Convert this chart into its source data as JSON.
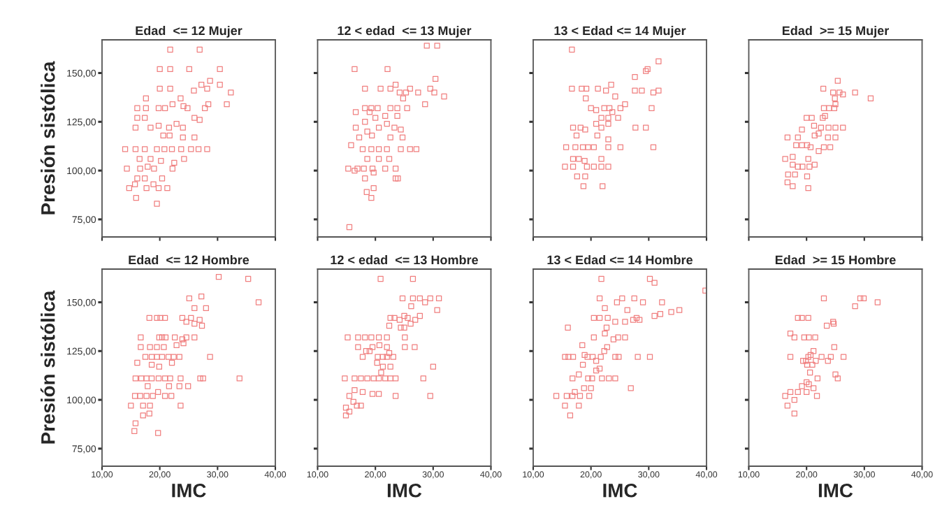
{
  "chart_data": [
    {
      "type": "scatter",
      "title": "Edad  <= 12 Mujer",
      "ylabel": "Presión sistólica",
      "xlim": [
        10,
        40
      ],
      "ylim": [
        66,
        167
      ],
      "xticks": [
        {
          "value": 10,
          "label": null
        },
        {
          "value": 20,
          "label": null
        },
        {
          "value": 30,
          "label": null
        },
        {
          "value": 40,
          "label": null
        }
      ],
      "yticks": [
        {
          "value": 75,
          "label": "75,00"
        },
        {
          "value": 100,
          "label": "100,00"
        },
        {
          "value": 125,
          "label": "125,00"
        },
        {
          "value": 150,
          "label": "150,00"
        }
      ],
      "tick_labels": "y",
      "marker": "square",
      "series": [
        {
          "color": "#f07f7f",
          "x": [
            21.8,
            26.9,
            20.0,
            21.8,
            25.1,
            30.4,
            28.7,
            27.2,
            30.4,
            20.0,
            21.8,
            25.9,
            28.2,
            32.3,
            17.6,
            23.6,
            16.1,
            17.6,
            19.8,
            20.9,
            22.2,
            24.1,
            24.8,
            27.8,
            28.4,
            31.6,
            16.1,
            17.4,
            26.0,
            26.9,
            15.8,
            18.4,
            19.8,
            21.6,
            22.9,
            24.0,
            20.6,
            21.7,
            24.0,
            26.0,
            14.0,
            15.8,
            17.4,
            19.5,
            20.8,
            22.1,
            23.7,
            25.4,
            26.7,
            28.2,
            16.5,
            18.4,
            20.2,
            22.5,
            24.2,
            14.3,
            16.6,
            17.9,
            19.0,
            22.2,
            16.1,
            17.4,
            20.4,
            15.7,
            17.7,
            18.9,
            19.8,
            21.3,
            14.7,
            15.9,
            19.5
          ],
          "values": [
            162,
            162,
            152,
            152,
            152,
            152,
            146,
            144,
            144,
            142,
            142,
            141,
            142,
            140,
            137,
            137,
            132,
            132,
            132,
            132,
            134,
            133,
            132,
            132,
            134,
            134,
            127,
            127,
            127,
            126,
            122,
            122,
            123,
            122,
            124,
            122,
            118,
            118,
            117,
            117,
            111,
            111,
            111,
            111,
            111,
            111,
            111,
            111,
            111,
            111,
            106,
            106,
            105,
            104,
            106,
            101,
            101,
            102,
            101,
            101,
            96,
            96,
            96,
            93,
            91,
            93,
            91,
            91,
            91,
            86,
            83
          ]
        }
      ]
    },
    {
      "type": "scatter",
      "title": "12 < edad  <= 13 Mujer",
      "xlim": [
        10,
        40
      ],
      "ylim": [
        66,
        167
      ],
      "xticks": [
        {
          "value": 10,
          "label": null
        },
        {
          "value": 20,
          "label": null
        },
        {
          "value": 30,
          "label": null
        },
        {
          "value": 40,
          "label": null
        }
      ],
      "yticks": [
        {
          "value": 75,
          "label": null
        },
        {
          "value": 100,
          "label": null
        },
        {
          "value": 125,
          "label": null
        },
        {
          "value": 150,
          "label": null
        }
      ],
      "tick_labels": false,
      "marker": "square",
      "series": [
        {
          "color": "#f07f7f",
          "x": [
            28.9,
            30.7,
            16.4,
            22.1,
            30.4,
            18.2,
            20.9,
            22.6,
            23.5,
            24.2,
            25.3,
            26.0,
            27.4,
            29.5,
            30.2,
            31.9,
            28.6,
            24.8,
            18.2,
            19.3,
            20.4,
            22.6,
            23.8,
            25.5,
            16.6,
            19.0,
            20.0,
            21.7,
            23.8,
            18.2,
            16.6,
            20.6,
            22.0,
            23.3,
            24.4,
            18.6,
            17.2,
            19.4,
            22.6,
            24.7,
            15.8,
            17.8,
            19.3,
            20.6,
            22.0,
            24.4,
            26.0,
            27.1,
            18.6,
            20.6,
            22.4,
            15.3,
            16.9,
            18.0,
            19.5,
            21.7,
            23.5,
            16.4,
            19.7,
            18.2,
            23.5,
            23.9,
            19.7,
            18.5,
            19.3,
            15.5
          ],
          "values": [
            164,
            164,
            152,
            152,
            147,
            142,
            142,
            142,
            144,
            140,
            140,
            142,
            140,
            142,
            140,
            138,
            134,
            137,
            132,
            132,
            132,
            132,
            132,
            132,
            130,
            130,
            127,
            128,
            128,
            125,
            122,
            122,
            124,
            122,
            121,
            120,
            117,
            118,
            117,
            117,
            113,
            111,
            111,
            111,
            111,
            111,
            111,
            111,
            106,
            106,
            106,
            101,
            101,
            101,
            101,
            101,
            101,
            100,
            99,
            96,
            96,
            96,
            91,
            89,
            86,
            71
          ]
        }
      ]
    },
    {
      "type": "scatter",
      "title": "13 < Edad <= 14 Mujer",
      "xlim": [
        10,
        40
      ],
      "ylim": [
        66,
        167
      ],
      "xticks": [
        {
          "value": 10,
          "label": null
        },
        {
          "value": 20,
          "label": null
        },
        {
          "value": 30,
          "label": null
        },
        {
          "value": 40,
          "label": null
        }
      ],
      "yticks": [
        {
          "value": 75,
          "label": null
        },
        {
          "value": 100,
          "label": null
        },
        {
          "value": 125,
          "label": null
        },
        {
          "value": 150,
          "label": null
        }
      ],
      "tick_labels": false,
      "marker": "square",
      "series": [
        {
          "color": "#f07f7f",
          "x": [
            16.7,
            31.7,
            29.8,
            29.5,
            27.6,
            16.7,
            18.4,
            19.2,
            21.2,
            22.6,
            23.5,
            24.2,
            27.6,
            28.8,
            30.8,
            31.7,
            19.1,
            20.0,
            20.9,
            22.3,
            23.2,
            23.7,
            25.1,
            25.9,
            30.5,
            21.8,
            23.0,
            24.7,
            16.9,
            18.2,
            19.0,
            20.9,
            21.8,
            23.0,
            27.7,
            29.5,
            17.5,
            21.1,
            23.0,
            15.7,
            17.3,
            18.6,
            19.5,
            20.5,
            23.0,
            25.1,
            30.8,
            16.9,
            17.9,
            21.8,
            18.9,
            15.5,
            16.9,
            19.3,
            20.5,
            21.8,
            23.0,
            17.6,
            19.0,
            18.7,
            22.0
          ],
          "values": [
            162,
            156,
            152,
            151,
            148,
            142,
            142,
            142,
            142,
            141,
            144,
            138,
            141,
            141,
            140,
            141,
            137,
            132,
            131,
            132,
            132,
            130,
            132,
            134,
            132,
            127,
            127,
            127,
            122,
            122,
            121,
            124,
            122,
            124,
            122,
            122,
            118,
            118,
            116,
            112,
            112,
            112,
            112,
            112,
            112,
            112,
            112,
            106,
            106,
            106,
            105,
            102,
            102,
            102,
            102,
            102,
            102,
            97,
            97,
            92,
            92
          ]
        }
      ]
    },
    {
      "type": "scatter",
      "title": "Edad  >= 15 Mujer",
      "xlim": [
        10,
        40
      ],
      "ylim": [
        66,
        167
      ],
      "xticks": [
        {
          "value": 10,
          "label": null
        },
        {
          "value": 20,
          "label": null
        },
        {
          "value": 30,
          "label": null
        },
        {
          "value": 40,
          "label": null
        }
      ],
      "yticks": [
        {
          "value": 75,
          "label": null
        },
        {
          "value": 100,
          "label": null
        },
        {
          "value": 125,
          "label": null
        },
        {
          "value": 150,
          "label": null
        }
      ],
      "tick_labels": false,
      "marker": "square",
      "series": [
        {
          "color": "#f07f7f",
          "x": [
            25.4,
            22.9,
            24.6,
            25.7,
            26.3,
            28.4,
            31.1,
            24.9,
            23.0,
            23.9,
            24.8,
            25.0,
            20.0,
            20.9,
            22.8,
            23.2,
            21.3,
            22.5,
            23.8,
            25.0,
            26.3,
            19.2,
            16.7,
            18.5,
            21.4,
            22.1,
            23.7,
            25.0,
            18.2,
            19.2,
            20.1,
            20.7,
            23.0,
            24.1,
            22.1,
            16.3,
            17.6,
            20.3,
            21.4,
            17.6,
            18.5,
            19.3,
            20.5,
            16.8,
            18.0,
            20.1,
            16.7,
            17.6,
            20.3
          ],
          "values": [
            146,
            142,
            140,
            140,
            139,
            140,
            137,
            137,
            132,
            132,
            132,
            134,
            127,
            127,
            127,
            128,
            123,
            122,
            122,
            122,
            122,
            121,
            117,
            117,
            118,
            119,
            117,
            117,
            113,
            113,
            113,
            112,
            112,
            112,
            110,
            106,
            107,
            106,
            103,
            103,
            102,
            102,
            102,
            98,
            98,
            97,
            94,
            92,
            91
          ]
        }
      ]
    },
    {
      "type": "scatter",
      "title": "Edad  <= 12 Hombre",
      "ylabel": "Presión sistólica",
      "xlabel": "IMC",
      "xlim": [
        10,
        40
      ],
      "ylim": [
        66,
        167
      ],
      "xticks": [
        {
          "value": 10,
          "label": "10,00"
        },
        {
          "value": 20,
          "label": "20,00"
        },
        {
          "value": 30,
          "label": "30,00"
        },
        {
          "value": 40,
          "label": "40,00"
        }
      ],
      "yticks": [
        {
          "value": 75,
          "label": "75,00"
        },
        {
          "value": 100,
          "label": "100,00"
        },
        {
          "value": 125,
          "label": "125,00"
        },
        {
          "value": 150,
          "label": "150,00"
        }
      ],
      "marker": "square",
      "series": [
        {
          "color": "#f07f7f",
          "x": [
            30.2,
            35.3,
            37.1,
            25.1,
            27.2,
            26.0,
            28.0,
            18.2,
            19.5,
            20.1,
            20.9,
            23.9,
            25.4,
            24.6,
            26.0,
            26.9,
            27.3,
            16.7,
            19.9,
            20.4,
            21.0,
            22.6,
            23.9,
            24.6,
            26.0,
            16.7,
            18.3,
            19.5,
            20.7,
            22.9,
            24.1,
            17.5,
            18.6,
            19.5,
            20.4,
            21.5,
            22.4,
            23.4,
            28.7,
            16.1,
            18.6,
            19.9,
            22.1,
            15.8,
            16.8,
            17.7,
            18.6,
            19.8,
            20.9,
            21.8,
            23.6,
            27.0,
            27.5,
            33.8,
            17.9,
            21.6,
            23.4,
            24.9,
            15.7,
            16.6,
            17.7,
            18.8,
            19.7,
            20.9,
            22.0,
            15.0,
            17.1,
            18.3,
            23.6,
            17.1,
            18.2,
            15.8,
            15.6,
            19.7
          ],
          "values": [
            163,
            162,
            150,
            152,
            153,
            147,
            147,
            142,
            142,
            142,
            142,
            142,
            142,
            140,
            139,
            141,
            138,
            132,
            132,
            132,
            132,
            132,
            131,
            132,
            132,
            127,
            127,
            127,
            127,
            128,
            129,
            122,
            122,
            122,
            122,
            122,
            122,
            122,
            122,
            119,
            118,
            117,
            119,
            111,
            111,
            111,
            111,
            111,
            111,
            111,
            111,
            111,
            111,
            111,
            107,
            107,
            107,
            107,
            102,
            102,
            102,
            102,
            104,
            102,
            102,
            97,
            97,
            97,
            97,
            92,
            93,
            88,
            84,
            83
          ]
        }
      ]
    },
    {
      "type": "scatter",
      "title": "12 < edad  <= 13 Hombre",
      "xlabel": "IMC",
      "xlim": [
        10,
        40
      ],
      "ylim": [
        66,
        167
      ],
      "xticks": [
        {
          "value": 10,
          "label": "10,00"
        },
        {
          "value": 20,
          "label": "20,00"
        },
        {
          "value": 30,
          "label": "30,00"
        },
        {
          "value": 40,
          "label": "40,00"
        }
      ],
      "yticks": [
        {
          "value": 75,
          "label": null
        },
        {
          "value": 100,
          "label": null
        },
        {
          "value": 125,
          "label": null
        },
        {
          "value": 150,
          "label": null
        }
      ],
      "tick_labels": "x",
      "marker": "square",
      "series": [
        {
          "color": "#f07f7f",
          "x": [
            20.9,
            26.5,
            24.7,
            26.5,
            27.7,
            29.5,
            31.0,
            28.6,
            26.2,
            30.7,
            22.6,
            23.3,
            24.2,
            25.0,
            25.6,
            27.7,
            26.9,
            26.1,
            25.0,
            24.4,
            22.4,
            15.2,
            17.0,
            18.2,
            19.3,
            20.6,
            22.0,
            25.1,
            17.0,
            19.5,
            20.7,
            22.0,
            25.1,
            26.8,
            18.4,
            19.0,
            17.8,
            20.4,
            21.3,
            22.0,
            23.1,
            22.4,
            20.3,
            21.3,
            22.6,
            30.0,
            14.7,
            16.4,
            17.5,
            18.6,
            19.7,
            20.6,
            21.7,
            22.6,
            23.5,
            28.3,
            21.0,
            16.4,
            17.8,
            19.5,
            20.6,
            23.5,
            29.5,
            15.5,
            16.2,
            16.8,
            17.5,
            14.9,
            15.5,
            14.9
          ],
          "values": [
            162,
            162,
            152,
            152,
            152,
            152,
            152,
            150,
            148,
            146,
            142,
            142,
            141,
            143,
            142,
            143,
            141,
            139,
            137,
            137,
            138,
            132,
            132,
            132,
            132,
            132,
            132,
            132,
            127,
            127,
            128,
            127,
            127,
            127,
            125,
            125,
            122,
            122,
            122,
            122,
            122,
            124,
            119,
            117,
            117,
            117,
            111,
            111,
            111,
            111,
            111,
            111,
            111,
            111,
            111,
            111,
            114,
            105,
            104,
            103,
            103,
            102,
            102,
            102,
            99,
            97,
            97,
            96,
            94,
            92
          ]
        }
      ]
    },
    {
      "type": "scatter",
      "title": "13 < Edad <= 14 Hombre",
      "xlabel": "IMC",
      "xlim": [
        10,
        40
      ],
      "ylim": [
        66,
        167
      ],
      "xticks": [
        {
          "value": 10,
          "label": "10,00"
        },
        {
          "value": 20,
          "label": "20,00"
        },
        {
          "value": 30,
          "label": "30,00"
        },
        {
          "value": 40,
          "label": "40,00"
        }
      ],
      "yticks": [
        {
          "value": 75,
          "label": null
        },
        {
          "value": 100,
          "label": null
        },
        {
          "value": 125,
          "label": null
        },
        {
          "value": 150,
          "label": null
        }
      ],
      "tick_labels": "x",
      "marker": "square",
      "series": [
        {
          "color": "#f07f7f",
          "x": [
            21.8,
            30.2,
            31.0,
            39.8,
            21.5,
            24.5,
            25.4,
            27.5,
            29.0,
            32.3,
            22.4,
            26.3,
            20.5,
            21.5,
            22.9,
            24.2,
            25.9,
            27.3,
            27.9,
            28.4,
            31.0,
            32.0,
            33.9,
            35.3,
            16.0,
            22.7,
            22.4,
            20.5,
            23.9,
            24.7,
            25.9,
            18.5,
            22.8,
            15.5,
            16.1,
            16.9,
            18.9,
            19.4,
            20.3,
            20.9,
            21.7,
            22.3,
            24.2,
            24.8,
            28.1,
            30.2,
            18.6,
            17.9,
            16.8,
            19.5,
            20.2,
            20.9,
            21.9,
            23.1,
            24.2,
            21.5,
            18.8,
            20.0,
            26.9,
            14.0,
            15.8,
            16.8,
            17.2,
            18.1,
            19.7,
            15.5,
            17.9,
            16.4
          ],
          "values": [
            162,
            162,
            160,
            156,
            152,
            150,
            152,
            152,
            150,
            150,
            147,
            146,
            142,
            142,
            142,
            140,
            140,
            141,
            142,
            141,
            143,
            144,
            145,
            146,
            137,
            137,
            134,
            132,
            131,
            132,
            132,
            128,
            127,
            122,
            122,
            122,
            123,
            122,
            122,
            120,
            122,
            125,
            122,
            122,
            122,
            122,
            118,
            113,
            111,
            111,
            111,
            115,
            111,
            111,
            111,
            116,
            106,
            106,
            106,
            102,
            102,
            102,
            104,
            102,
            102,
            97,
            97,
            92
          ]
        }
      ]
    },
    {
      "type": "scatter",
      "title": "Edad  >= 15 Hombre",
      "xlabel": "IMC",
      "xlim": [
        10,
        40
      ],
      "ylim": [
        66,
        167
      ],
      "xticks": [
        {
          "value": 10,
          "label": "10,00"
        },
        {
          "value": 20,
          "label": "20,00"
        },
        {
          "value": 30,
          "label": "30,00"
        },
        {
          "value": 40,
          "label": "40,00"
        }
      ],
      "yticks": [
        {
          "value": 75,
          "label": null
        },
        {
          "value": 100,
          "label": null
        },
        {
          "value": 125,
          "label": null
        },
        {
          "value": 150,
          "label": null
        }
      ],
      "tick_labels": "x",
      "marker": "square",
      "series": [
        {
          "color": "#f07f7f",
          "x": [
            23.0,
            28.4,
            29.3,
            29.9,
            32.3,
            18.5,
            19.2,
            20.3,
            24.6,
            24.7,
            23.5,
            17.2,
            17.9,
            19.6,
            20.4,
            21.5,
            24.8,
            17.2,
            19.4,
            19.9,
            20.3,
            20.7,
            21.2,
            21.6,
            22.6,
            23.7,
            24.2,
            26.4,
            20.1,
            21.0,
            20.6,
            21.9,
            25.0,
            25.4,
            20.0,
            19.2,
            20.4,
            21.2,
            20.0,
            17.2,
            18.5,
            16.3,
            17.9,
            21.8,
            16.7,
            17.9
          ],
          "values": [
            152,
            148,
            152,
            152,
            150,
            142,
            142,
            142,
            140,
            139,
            138,
            134,
            132,
            132,
            132,
            132,
            127,
            122,
            120,
            120,
            122,
            123,
            125,
            120,
            122,
            120,
            122,
            122,
            118,
            118,
            114,
            111,
            113,
            111,
            109,
            107,
            108,
            106,
            104,
            104,
            104,
            102,
            100,
            102,
            97,
            93
          ]
        }
      ]
    }
  ]
}
